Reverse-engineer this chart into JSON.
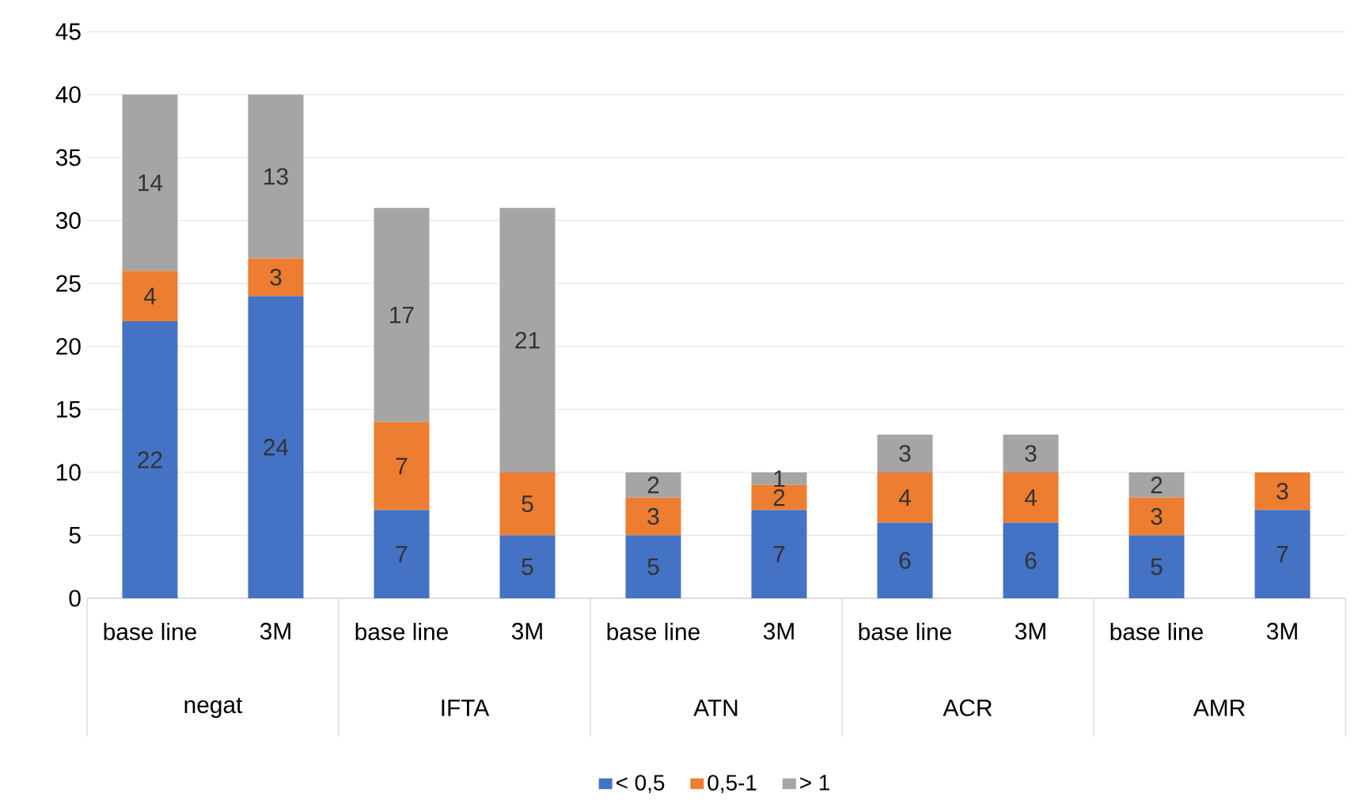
{
  "chart_data": {
    "type": "bar",
    "stacked": true,
    "categories": [
      "base line",
      "3M",
      "base line",
      "3M",
      "base line",
      "3M",
      "base line",
      "3M",
      "base line",
      "3M"
    ],
    "annotations": [
      "negat",
      "IFTA",
      "ATN",
      "ACR",
      "AMR"
    ],
    "series": [
      {
        "name": "< 0,5",
        "color": "#4472c4",
        "values": [
          22,
          24,
          7,
          5,
          5,
          7,
          6,
          6,
          5,
          7
        ]
      },
      {
        "name": "0,5-1",
        "color": "#ed7d31",
        "values": [
          4,
          3,
          7,
          5,
          3,
          2,
          4,
          4,
          3,
          3
        ]
      },
      {
        "name": "> 1",
        "color": "#a5a5a5",
        "values": [
          14,
          13,
          17,
          21,
          2,
          1,
          3,
          3,
          2,
          null
        ]
      }
    ],
    "ylim": [
      0,
      45
    ],
    "yticks": [
      0,
      5,
      10,
      15,
      20,
      25,
      30,
      35,
      40,
      45
    ],
    "grid": "y",
    "legend": "bottom",
    "data_labels": true
  }
}
